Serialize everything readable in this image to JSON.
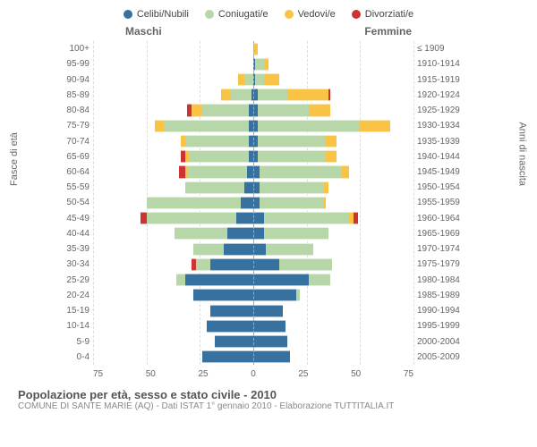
{
  "legend": {
    "items": [
      {
        "label": "Celibi/Nubili",
        "color": "#37719f"
      },
      {
        "label": "Coniugati/e",
        "color": "#b7d7a8"
      },
      {
        "label": "Vedovi/e",
        "color": "#f9c445"
      },
      {
        "label": "Divorziati/e",
        "color": "#cc3333"
      }
    ]
  },
  "chart": {
    "type": "population-pyramid",
    "x_max": 75,
    "x_ticks": [
      75,
      50,
      25,
      0,
      25,
      50,
      75
    ],
    "left_title": "Maschi",
    "right_title": "Femmine",
    "y_left_title": "Fasce di età",
    "y_right_title": "Anni di nascita",
    "background_color": "#ffffff",
    "grid_color": "#dddddd",
    "center_line_color": "#aaaaaa",
    "label_color": "#666666",
    "label_fontsize": 10,
    "rows": [
      {
        "age": "100+",
        "birth": "≤ 1909",
        "m": {
          "c": 0,
          "co": 0,
          "v": 0,
          "d": 0
        },
        "f": {
          "c": 0,
          "co": 0,
          "v": 2,
          "d": 0
        }
      },
      {
        "age": "95-99",
        "birth": "1910-1914",
        "m": {
          "c": 0,
          "co": 0,
          "v": 0,
          "d": 0
        },
        "f": {
          "c": 1,
          "co": 4,
          "v": 2,
          "d": 0
        }
      },
      {
        "age": "90-94",
        "birth": "1915-1919",
        "m": {
          "c": 0,
          "co": 4,
          "v": 3,
          "d": 0
        },
        "f": {
          "c": 1,
          "co": 4,
          "v": 7,
          "d": 0
        }
      },
      {
        "age": "85-89",
        "birth": "1920-1924",
        "m": {
          "c": 1,
          "co": 10,
          "v": 4,
          "d": 0
        },
        "f": {
          "c": 2,
          "co": 14,
          "v": 19,
          "d": 1
        }
      },
      {
        "age": "80-84",
        "birth": "1925-1929",
        "m": {
          "c": 2,
          "co": 22,
          "v": 5,
          "d": 2
        },
        "f": {
          "c": 2,
          "co": 24,
          "v": 10,
          "d": 0
        }
      },
      {
        "age": "75-79",
        "birth": "1930-1934",
        "m": {
          "c": 2,
          "co": 40,
          "v": 4,
          "d": 0
        },
        "f": {
          "c": 2,
          "co": 48,
          "v": 14,
          "d": 0
        }
      },
      {
        "age": "70-74",
        "birth": "1935-1939",
        "m": {
          "c": 2,
          "co": 30,
          "v": 2,
          "d": 0
        },
        "f": {
          "c": 2,
          "co": 32,
          "v": 5,
          "d": 0
        }
      },
      {
        "age": "65-69",
        "birth": "1940-1944",
        "m": {
          "c": 2,
          "co": 28,
          "v": 2,
          "d": 2
        },
        "f": {
          "c": 2,
          "co": 32,
          "v": 5,
          "d": 0
        }
      },
      {
        "age": "60-64",
        "birth": "1945-1949",
        "m": {
          "c": 3,
          "co": 28,
          "v": 1,
          "d": 3
        },
        "f": {
          "c": 3,
          "co": 38,
          "v": 4,
          "d": 0
        }
      },
      {
        "age": "55-59",
        "birth": "1950-1954",
        "m": {
          "c": 4,
          "co": 28,
          "v": 0,
          "d": 0
        },
        "f": {
          "c": 3,
          "co": 30,
          "v": 2,
          "d": 0
        }
      },
      {
        "age": "50-54",
        "birth": "1955-1959",
        "m": {
          "c": 6,
          "co": 44,
          "v": 0,
          "d": 0
        },
        "f": {
          "c": 3,
          "co": 30,
          "v": 1,
          "d": 0
        }
      },
      {
        "age": "45-49",
        "birth": "1960-1964",
        "m": {
          "c": 8,
          "co": 42,
          "v": 0,
          "d": 3
        },
        "f": {
          "c": 5,
          "co": 40,
          "v": 2,
          "d": 2
        }
      },
      {
        "age": "40-44",
        "birth": "1965-1969",
        "m": {
          "c": 12,
          "co": 25,
          "v": 0,
          "d": 0
        },
        "f": {
          "c": 5,
          "co": 30,
          "v": 0,
          "d": 0
        }
      },
      {
        "age": "35-39",
        "birth": "1970-1974",
        "m": {
          "c": 14,
          "co": 14,
          "v": 0,
          "d": 0
        },
        "f": {
          "c": 6,
          "co": 22,
          "v": 0,
          "d": 0
        }
      },
      {
        "age": "30-34",
        "birth": "1975-1979",
        "m": {
          "c": 20,
          "co": 7,
          "v": 0,
          "d": 2
        },
        "f": {
          "c": 12,
          "co": 25,
          "v": 0,
          "d": 0
        }
      },
      {
        "age": "25-29",
        "birth": "1980-1984",
        "m": {
          "c": 32,
          "co": 4,
          "v": 0,
          "d": 0
        },
        "f": {
          "c": 26,
          "co": 10,
          "v": 0,
          "d": 0
        }
      },
      {
        "age": "20-24",
        "birth": "1985-1989",
        "m": {
          "c": 28,
          "co": 0,
          "v": 0,
          "d": 0
        },
        "f": {
          "c": 20,
          "co": 2,
          "v": 0,
          "d": 0
        }
      },
      {
        "age": "15-19",
        "birth": "1990-1994",
        "m": {
          "c": 20,
          "co": 0,
          "v": 0,
          "d": 0
        },
        "f": {
          "c": 14,
          "co": 0,
          "v": 0,
          "d": 0
        }
      },
      {
        "age": "10-14",
        "birth": "1995-1999",
        "m": {
          "c": 22,
          "co": 0,
          "v": 0,
          "d": 0
        },
        "f": {
          "c": 15,
          "co": 0,
          "v": 0,
          "d": 0
        }
      },
      {
        "age": "5-9",
        "birth": "2000-2004",
        "m": {
          "c": 18,
          "co": 0,
          "v": 0,
          "d": 0
        },
        "f": {
          "c": 16,
          "co": 0,
          "v": 0,
          "d": 0
        }
      },
      {
        "age": "0-4",
        "birth": "2005-2009",
        "m": {
          "c": 24,
          "co": 0,
          "v": 0,
          "d": 0
        },
        "f": {
          "c": 17,
          "co": 0,
          "v": 0,
          "d": 0
        }
      }
    ]
  },
  "footer": {
    "title": "Popolazione per età, sesso e stato civile - 2010",
    "subtitle": "COMUNE DI SANTE MARIE (AQ) - Dati ISTAT 1° gennaio 2010 - Elaborazione TUTTITALIA.IT"
  }
}
